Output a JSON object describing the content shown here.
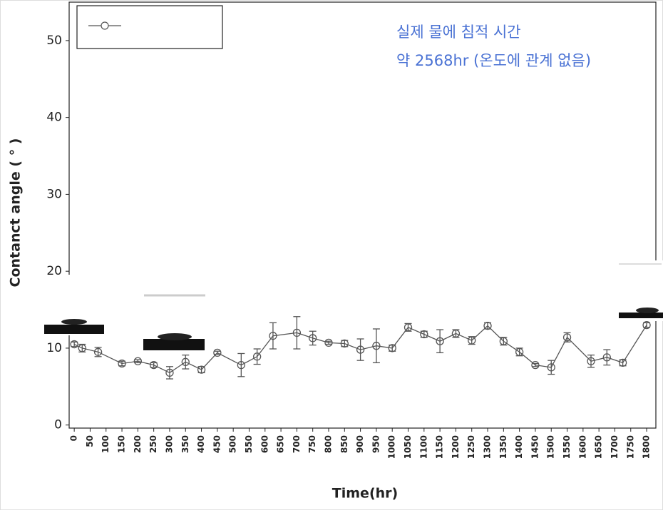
{
  "chart_data": {
    "type": "line",
    "x_label": "Time(hr)",
    "y_label": "Contanct angle ( ° )",
    "annotations": [
      "실제 물에 침적 시간",
      "약 2568hr (온도에 관계 없음)"
    ],
    "x": [
      0,
      25,
      75,
      150,
      200,
      250,
      300,
      350,
      400,
      450,
      525,
      575,
      625,
      700,
      750,
      800,
      850,
      900,
      950,
      1000,
      1050,
      1100,
      1150,
      1200,
      1250,
      1300,
      1350,
      1400,
      1450,
      1500,
      1550,
      1625,
      1675,
      1725,
      1800
    ],
    "series": [
      {
        "color": "#555555",
        "values": [
          10.5,
          10.0,
          9.5,
          8.0,
          8.3,
          7.8,
          6.8,
          8.2,
          7.2,
          9.4,
          7.8,
          8.9,
          11.6,
          12.0,
          11.3,
          10.7,
          10.6,
          9.8,
          10.3,
          10.0,
          12.7,
          11.8,
          10.9,
          11.9,
          11.0,
          12.9,
          10.9,
          9.5,
          7.8,
          7.5,
          11.4,
          8.3,
          8.8,
          8.1,
          13.0
        ],
        "errors": [
          0.3,
          0.5,
          0.6,
          0.3,
          0.2,
          0.3,
          0.8,
          0.9,
          0.4,
          0.2,
          1.5,
          1.0,
          1.7,
          2.1,
          0.9,
          0.2,
          0.4,
          1.4,
          2.2,
          0.4,
          0.5,
          0.4,
          1.5,
          0.5,
          0.5,
          0.4,
          0.5,
          0.5,
          0.2,
          0.9,
          0.6,
          0.8,
          1.0,
          0.4,
          0.3
        ]
      }
    ],
    "xlim": [
      -16,
      1829
    ],
    "ylim": [
      -0.4,
      55
    ],
    "xticks": [
      0,
      50,
      100,
      150,
      200,
      250,
      300,
      350,
      400,
      450,
      500,
      550,
      600,
      650,
      700,
      750,
      800,
      850,
      900,
      950,
      1000,
      1050,
      1100,
      1150,
      1200,
      1250,
      1300,
      1350,
      1400,
      1450,
      1500,
      1550,
      1600,
      1650,
      1700,
      1750,
      1800
    ],
    "yticks": [
      0,
      10,
      20,
      30,
      40,
      50
    ],
    "grid": false
  }
}
